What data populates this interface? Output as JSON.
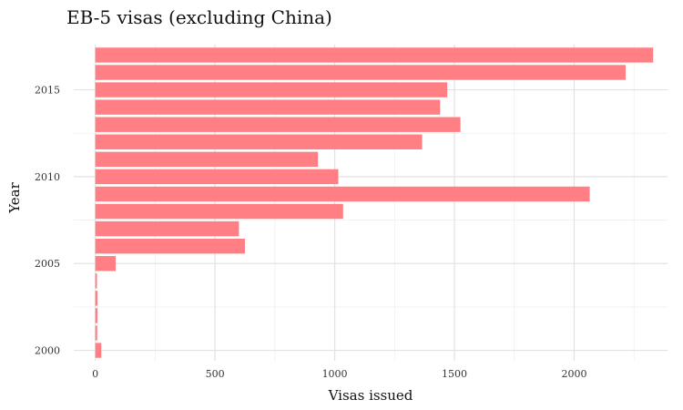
{
  "chart_data": {
    "type": "bar",
    "orientation": "horizontal",
    "title": "EB-5 visas (excluding China)",
    "xlabel": "Visas issued",
    "ylabel": "Year",
    "xlim": [
      -90,
      2390
    ],
    "ylim": [
      1999.4,
      2017.6
    ],
    "x_ticks": [
      0,
      500,
      1000,
      1500,
      2000
    ],
    "y_ticks": [
      2000,
      2005,
      2010,
      2015
    ],
    "grid": true,
    "bar_color": "#ff7f84",
    "categories": [
      2000,
      2001,
      2002,
      2003,
      2004,
      2005,
      2006,
      2007,
      2008,
      2009,
      2010,
      2011,
      2012,
      2013,
      2014,
      2015,
      2016,
      2017
    ],
    "values": [
      25,
      8,
      9,
      9,
      7,
      85,
      625,
      600,
      1035,
      2065,
      1015,
      930,
      1365,
      1525,
      1440,
      1470,
      2215,
      2330
    ]
  }
}
